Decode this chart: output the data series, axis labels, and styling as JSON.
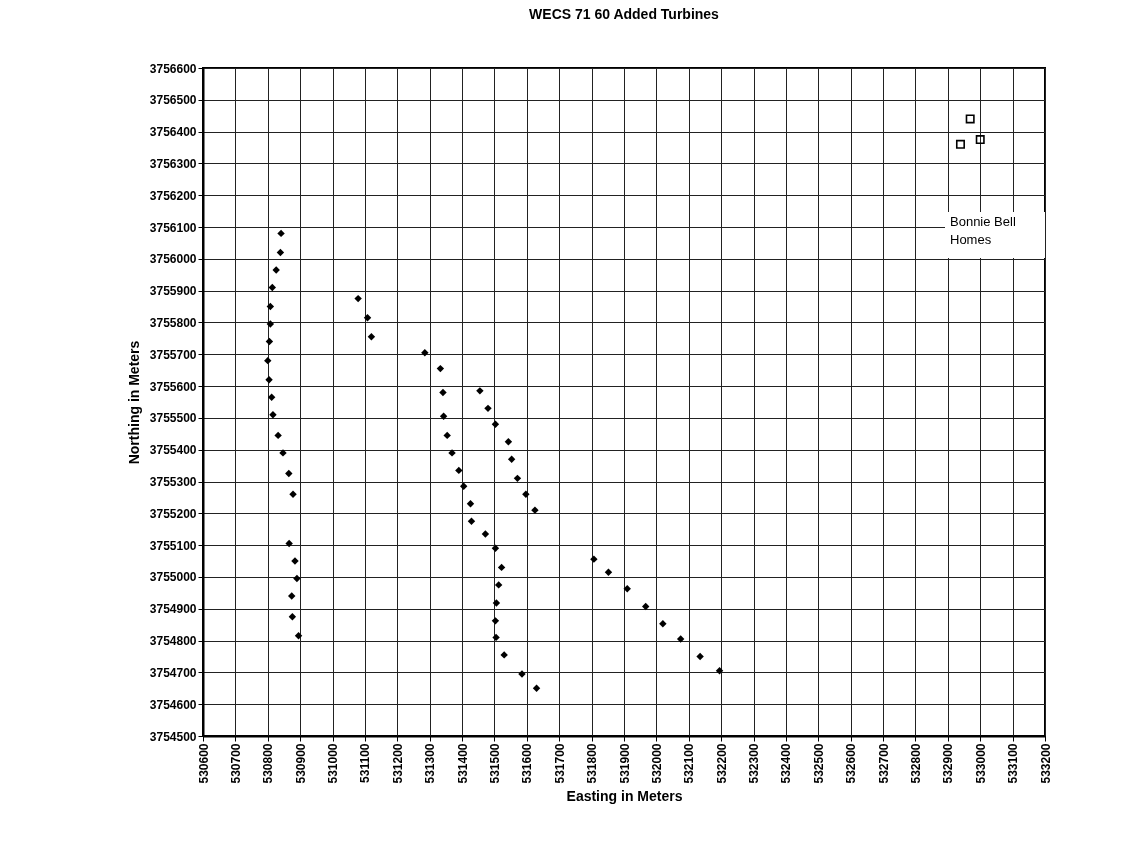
{
  "chart_data": {
    "type": "scatter",
    "title": "WECS 71 60 Added Turbines",
    "xlabel": "Easting in Meters",
    "ylabel": "Northing in Meters",
    "xlim": [
      530600,
      533200
    ],
    "ylim": [
      3754500,
      3756600
    ],
    "xticks": [
      530600,
      530700,
      530800,
      530900,
      531000,
      531100,
      531200,
      531300,
      531400,
      531500,
      531600,
      531700,
      531800,
      531900,
      532000,
      532100,
      532200,
      532300,
      532400,
      532500,
      532600,
      532700,
      532800,
      532900,
      533000,
      533100,
      533200
    ],
    "yticks": [
      3754500,
      3754600,
      3754700,
      3754800,
      3754900,
      3755000,
      3755100,
      3755200,
      3755300,
      3755400,
      3755500,
      3755600,
      3755700,
      3755800,
      3755900,
      3756000,
      3756100,
      3756200,
      3756300,
      3756400,
      3756500,
      3756600
    ],
    "grid": true,
    "series": [
      {
        "color": "#000000",
        "marker": "diamond",
        "x": [
          530841,
          530839,
          530826,
          530814,
          530808,
          530808,
          530805,
          530800,
          530804,
          530812,
          530816,
          530832,
          530847,
          530865,
          530878,
          530866,
          530884,
          530890,
          530874,
          530876,
          530895,
          531079,
          531108,
          531120,
          531285,
          531333,
          531341,
          531343,
          531354,
          531369,
          531390,
          531405,
          531426,
          531429,
          531472,
          531503,
          531522,
          531513,
          531506,
          531503,
          531505,
          531530,
          531585,
          531630,
          531455,
          531480,
          531503,
          531543,
          531553,
          531571,
          531597,
          531625,
          531807,
          531852,
          531910,
          531967,
          532020,
          532075,
          532135,
          532195
        ],
        "values": [
          3756080,
          3756020,
          3755965,
          3755910,
          3755850,
          3755795,
          3755740,
          3755680,
          3755620,
          3755565,
          3755510,
          3755445,
          3755390,
          3755325,
          3755260,
          3755105,
          3755050,
          3754995,
          3754940,
          3754875,
          3754815,
          3755875,
          3755815,
          3755755,
          3755705,
          3755655,
          3755580,
          3755505,
          3755445,
          3755390,
          3755335,
          3755285,
          3755230,
          3755175,
          3755135,
          3755090,
          3755030,
          3754975,
          3754918,
          3754862,
          3754810,
          3754755,
          3754695,
          3754650,
          3755585,
          3755530,
          3755480,
          3755425,
          3755370,
          3755310,
          3755260,
          3755210,
          3755056,
          3755015,
          3754963,
          3754907,
          3754853,
          3754805,
          3754750,
          3754705
        ]
      },
      {
        "color": "#000000",
        "marker": "square",
        "x": [
          532969,
          533000,
          532939
        ],
        "values": [
          3756440,
          3756375,
          3756360
        ]
      }
    ],
    "annotations": [
      "Bonnie Bell\nHomes"
    ]
  }
}
